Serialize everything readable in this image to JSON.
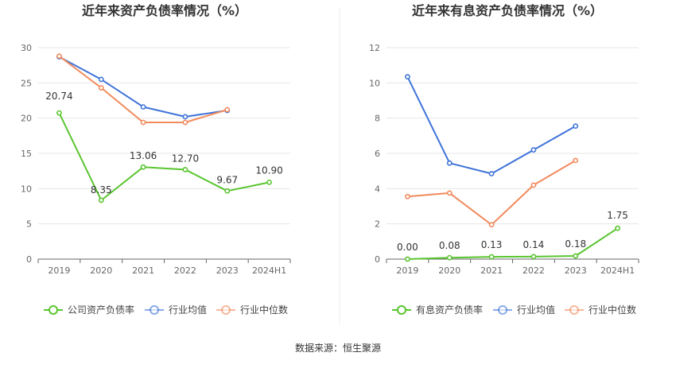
{
  "source": "数据来源：恒生聚源",
  "chart_data": [
    {
      "type": "line",
      "title": "近年来资产负债率情况（%）",
      "categories": [
        "2019",
        "2020",
        "2021",
        "2022",
        "2023",
        "2024H1"
      ],
      "ylim": [
        0,
        30
      ],
      "yticks": [
        0,
        5,
        10,
        15,
        20,
        25,
        30
      ],
      "grid": true,
      "legend_position": "bottom",
      "series": [
        {
          "name": "公司资产负债率",
          "color": "#5ac530",
          "values": [
            20.74,
            8.35,
            13.06,
            12.7,
            9.67,
            10.9
          ],
          "labels": [
            "20.74",
            "8.35",
            "13.06",
            "12.70",
            "9.67",
            "10.90"
          ]
        },
        {
          "name": "行业均值",
          "color": "#3f74d9",
          "values": [
            28.7,
            25.5,
            21.6,
            20.2,
            21.1,
            null
          ]
        },
        {
          "name": "行业中位数",
          "color": "#f28a5c",
          "values": [
            28.8,
            24.3,
            19.4,
            19.4,
            21.2,
            null
          ]
        }
      ]
    },
    {
      "type": "line",
      "title": "近年来有息资产负债率情况（%）",
      "categories": [
        "2019",
        "2020",
        "2021",
        "2022",
        "2023",
        "2024H1"
      ],
      "ylim": [
        0,
        12
      ],
      "yticks": [
        0,
        2,
        4,
        6,
        8,
        10,
        12
      ],
      "grid": true,
      "legend_position": "bottom",
      "series": [
        {
          "name": "有息资产负债率",
          "color": "#5ac530",
          "values": [
            0.0,
            0.08,
            0.13,
            0.14,
            0.18,
            1.75
          ],
          "labels": [
            "0.00",
            "0.08",
            "0.13",
            "0.14",
            "0.18",
            "1.75"
          ]
        },
        {
          "name": "行业均值",
          "color": "#3f74d9",
          "values": [
            10.35,
            5.45,
            4.85,
            6.2,
            7.55,
            null
          ]
        },
        {
          "name": "行业中位数",
          "color": "#f28a5c",
          "values": [
            3.55,
            3.75,
            1.95,
            4.2,
            5.6,
            null
          ]
        }
      ]
    }
  ]
}
